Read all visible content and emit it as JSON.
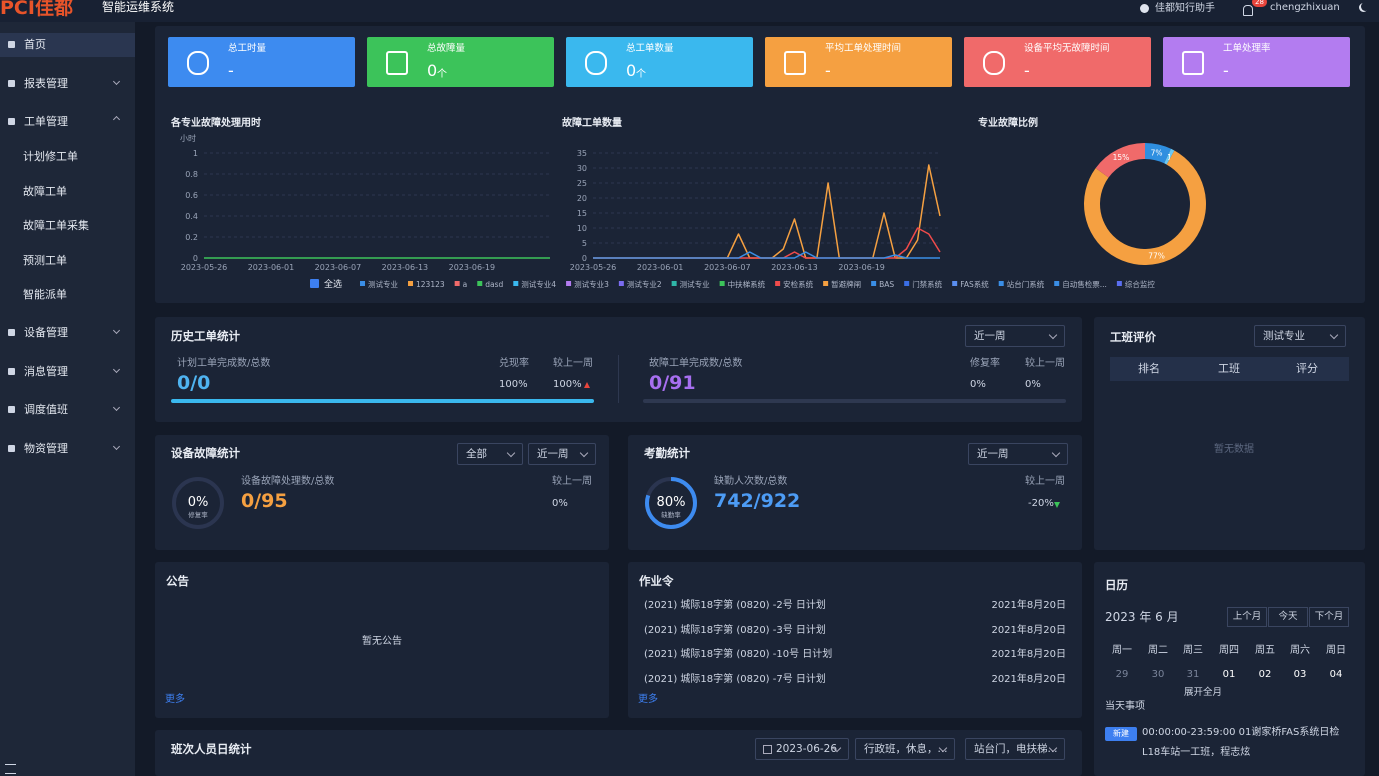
{
  "header": {
    "logo": "PCI佳都",
    "system_name": "智能运维系统",
    "assistant": "佳都知行助手",
    "notification_count": 28,
    "user": "chengzhixuan"
  },
  "sidebar": [
    {
      "label": "首页",
      "active": true
    },
    {
      "label": "报表管理"
    },
    {
      "label": "工单管理",
      "children": [
        "计划修工单",
        "故障工单",
        "故障工单采集",
        "预测工单",
        "智能派单"
      ]
    },
    {
      "label": "设备管理"
    },
    {
      "label": "消息管理"
    },
    {
      "label": "调度值班"
    },
    {
      "label": "物资管理"
    }
  ],
  "kpis": [
    {
      "title": "总工时量",
      "value": "-",
      "color": "#3d8bf0"
    },
    {
      "title": "总故障量",
      "value": 0,
      "unit": "个",
      "color": "#3cc35a"
    },
    {
      "title": "总工单数量",
      "value": 0,
      "unit": "个",
      "color": "#3ab8ee"
    },
    {
      "title": "平均工单处理时间",
      "value": "-",
      "color": "#f5a041"
    },
    {
      "title": "设备平均无故障时间",
      "value": "-",
      "color": "#f06a6a"
    },
    {
      "title": "工单处理率",
      "value": "-",
      "color": "#b37cf0"
    }
  ],
  "chart_data": [
    {
      "type": "line",
      "title": "各专业故障处理用时",
      "y_label": "小时",
      "categories": [
        "2023-05-26",
        null,
        null,
        null,
        null,
        null,
        "2023-06-01",
        null,
        null,
        null,
        null,
        null,
        "2023-06-07",
        null,
        null,
        null,
        null,
        null,
        "2023-06-13",
        null,
        null,
        null,
        null,
        null,
        "2023-06-19",
        null,
        null,
        null,
        null,
        null,
        null,
        null
      ],
      "series": [
        {
          "color": "#3cc35a",
          "values": [
            0,
            0,
            0,
            0,
            0,
            0,
            0,
            0,
            0,
            0,
            0,
            0,
            0,
            0,
            0,
            0,
            0,
            0,
            0,
            0,
            0,
            0,
            0,
            0,
            0,
            0,
            0,
            0,
            0,
            0,
            0,
            0
          ]
        }
      ],
      "ylim": [
        0,
        1
      ],
      "yticks": [
        0,
        0.2,
        0.4,
        0.6,
        0.8,
        1
      ],
      "grid": true
    },
    {
      "type": "line",
      "title": "故障工单数量",
      "categories": [
        "2023-05-26",
        null,
        null,
        null,
        null,
        null,
        "2023-06-01",
        null,
        null,
        null,
        null,
        null,
        "2023-06-07",
        null,
        null,
        null,
        null,
        null,
        "2023-06-13",
        null,
        null,
        null,
        null,
        null,
        "2023-06-19",
        null,
        null,
        null,
        null,
        null,
        null,
        null
      ],
      "series": [
        {
          "color": "#f5a041",
          "values": [
            0,
            0,
            0,
            0,
            0,
            0,
            0,
            0,
            0,
            0,
            0,
            0,
            0,
            8,
            0,
            0,
            0,
            3,
            13,
            0,
            0,
            25,
            0,
            0,
            0,
            0,
            15,
            0,
            0,
            6,
            31,
            14
          ]
        },
        {
          "color": "#f04b4b",
          "values": [
            0,
            0,
            0,
            0,
            0,
            0,
            0,
            0,
            0,
            0,
            0,
            0,
            0,
            0,
            0,
            0,
            0,
            0,
            2,
            0,
            0,
            0,
            0,
            0,
            0,
            0,
            0,
            0,
            3,
            10,
            8,
            2
          ]
        },
        {
          "color": "#3a8ee6",
          "values": [
            0,
            0,
            0,
            0,
            0,
            0,
            0,
            0,
            0,
            0,
            0,
            0,
            0,
            0,
            2,
            0,
            0,
            0,
            0,
            2,
            0,
            0,
            0,
            0,
            0,
            0,
            0,
            1,
            0,
            0,
            0,
            0
          ]
        }
      ],
      "ylim": [
        0,
        35
      ],
      "yticks": [
        0,
        5,
        10,
        15,
        20,
        25,
        30,
        35
      ],
      "grid": true
    },
    {
      "type": "pie",
      "title": "专业故障比例",
      "values": [
        7,
        1,
        77,
        15
      ],
      "value_labels": [
        "7%",
        "1%",
        "77%",
        "15%"
      ],
      "colors": [
        "#2f8fe0",
        "#6cc8f2",
        "#f5a041",
        "#f06a6a"
      ],
      "donut": true
    }
  ],
  "chart_legend": {
    "select_all": "全选",
    "items": [
      {
        "name": "测试专业",
        "color": "#3a8ee6"
      },
      {
        "name": "123123",
        "color": "#f5a041"
      },
      {
        "name": "a",
        "color": "#f06a6a"
      },
      {
        "name": "dasd",
        "color": "#3cc35a"
      },
      {
        "name": "测试专业4",
        "color": "#3ab8ee"
      },
      {
        "name": "测试专业3",
        "color": "#b37cf0"
      },
      {
        "name": "测试专业2",
        "color": "#7b6cf0"
      },
      {
        "name": "测试专业",
        "color": "#2fb6a8"
      },
      {
        "name": "中扶梯系统",
        "color": "#3cc35a"
      },
      {
        "name": "安检系统",
        "color": "#f04b4b"
      },
      {
        "name": "暂避牌闸",
        "color": "#f5a041"
      },
      {
        "name": "BAS",
        "color": "#3a8ee6"
      },
      {
        "name": "门禁系统",
        "color": "#3a6ee6"
      },
      {
        "name": "FAS系统",
        "color": "#5a8ef0"
      },
      {
        "name": "站台门系统",
        "color": "#3a8ee6"
      },
      {
        "name": "自动售检票...",
        "color": "#3a8ee6"
      },
      {
        "name": "综合监控",
        "color": "#5a6ef0"
      }
    ]
  },
  "history_stats": {
    "title": "历史工单统计",
    "period": "近一周",
    "plan_label": "计划工单完成数/总数",
    "plan_value": "0/0",
    "rate_label": "兑现率",
    "rate": "100%",
    "compare_label": "较上一周",
    "compare": "100%",
    "fault_label": "故障工单完成数/总数",
    "fault_value": "0/91",
    "repair_label": "修复率",
    "repair_rate": "0%",
    "fault_compare_label": "较上一周",
    "fault_compare": "0%"
  },
  "device_stats": {
    "title": "设备故障统计",
    "filter": "全部",
    "period": "近一周",
    "ring": {
      "value": 0,
      "label": "0%",
      "caption": "修复率"
    },
    "count_label": "设备故障处理数/总数",
    "count": "0/95",
    "compare_label": "较上一周",
    "compare": "0%"
  },
  "attendance": {
    "title": "考勤统计",
    "period": "近一周",
    "ring": {
      "value": 80,
      "label": "80%",
      "caption": "缺勤率"
    },
    "count_label": "缺勤人次数/总数",
    "count": "742/922",
    "compare_label": "较上一周",
    "compare": "-20%"
  },
  "team_rating": {
    "title": "工班评价",
    "filter": "测试专业",
    "columns": [
      "排名",
      "工班",
      "评分"
    ],
    "empty": "暂无数据"
  },
  "notice": {
    "title": "公告",
    "empty": "暂无公告",
    "more": "更多"
  },
  "work_orders": {
    "title": "作业令",
    "rows": [
      [
        "(2021) 城际18字第 (0820) -2号 日计划",
        "2021年8月20日"
      ],
      [
        "(2021) 城际18字第 (0820) -3号 日计划",
        "2021年8月20日"
      ],
      [
        "(2021) 城际18字第 (0820) -10号 日计划",
        "2021年8月20日"
      ],
      [
        "(2021) 城际18字第 (0820) -7号 日计划",
        "2021年8月20日"
      ]
    ],
    "more": "更多"
  },
  "calendar": {
    "title": "日历",
    "month": "2023 年 6 月",
    "buttons": [
      "上个月",
      "今天",
      "下个月"
    ],
    "weekdays": [
      "周一",
      "周二",
      "周三",
      "周四",
      "周五",
      "周六",
      "周日"
    ],
    "days": [
      "29",
      "30",
      "31",
      "01",
      "02",
      "03",
      "04"
    ],
    "expand": "展开全月",
    "today_label": "当天事项",
    "tag": "新建",
    "event_time": "00:00:00-23:59:00 01谢家桥FAS系统日检",
    "event_team": "L18车站一工班，程志炫"
  },
  "shift_stats": {
    "title": "班次人员日统计",
    "date": "2023-06-26",
    "shift_filter": "行政班，休息，...",
    "station_filter": "站台门，电扶梯..."
  }
}
